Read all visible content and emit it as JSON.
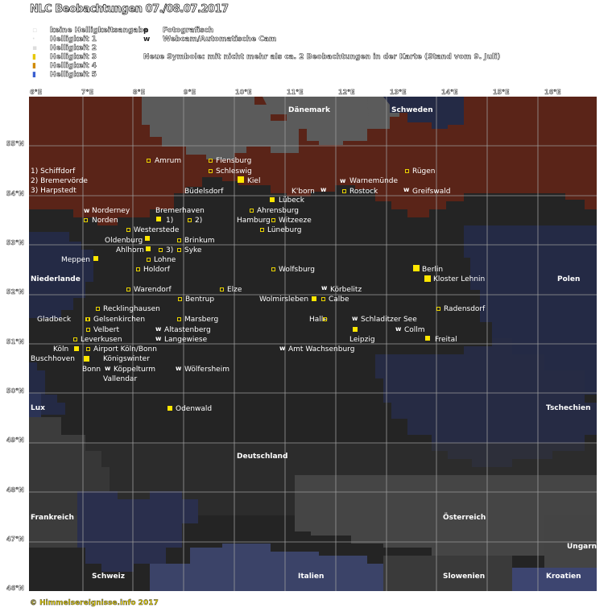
{
  "title": "NLC Beobachtungen 07./08.07.2017",
  "legend": {
    "left": [
      {
        "symbol": "▫",
        "label": "keine Helligkeitsangabe"
      },
      {
        "symbol": "·",
        "label": "Helligkeit 1"
      },
      {
        "symbol": "▪",
        "label": "Helligkeit 2"
      },
      {
        "symbol": "▮",
        "label": "Helligkeit 3"
      },
      {
        "symbol": "▮",
        "label": "Helligkeit 4"
      },
      {
        "symbol": "▮",
        "label": "Helligkeit 5"
      }
    ],
    "right": [
      {
        "symbol": "p",
        "label": "Fotografisch"
      },
      {
        "symbol": "w",
        "label": "Webcam/Automatische Cam"
      }
    ],
    "note": "Neue Symbole: mit nicht mehr als ca. 2 Beobachtungen in der Karte (Stand vom 9. Juli)"
  },
  "lon_labels": [
    "6°E",
    "7°E",
    "8°E",
    "9°E",
    "10°E",
    "11°E",
    "12°E",
    "13°E",
    "14°E",
    "15°E",
    "16°E"
  ],
  "lat_labels": [
    "55°N",
    "54°N",
    "53°N",
    "52°N",
    "51°N",
    "50°N",
    "49°N",
    "48°N",
    "47°N",
    "46°N"
  ],
  "countries": [
    "Dänemark",
    "Schweden",
    "Niederlande",
    "Polen",
    "Lux",
    "Tschechien",
    "Deutschland",
    "Frankreich",
    "Österreich",
    "Ungarn",
    "Schweiz",
    "Italien",
    "Slowenien",
    "Kroatien"
  ],
  "notes": [
    "1) Schiffdorf",
    "2) Bremervörde",
    "3) Harpstedt"
  ],
  "places": [
    "Amrum",
    "Flensburg",
    "Schleswig",
    "Kiel",
    "Büdelsdorf",
    "K'born",
    "Warnemünde",
    "Rostock",
    "Rügen",
    "Greifswald",
    "Lübeck",
    "Norderney",
    "Norden",
    "Bremerhaven",
    "1)",
    "2)",
    "Ahrensburg",
    "Hamburg",
    "Witzeeze",
    "Westerstede",
    "Lüneburg",
    "Oldenburg",
    "Brinkum",
    "Ahlhorn",
    "3)",
    "Syke",
    "Meppen",
    "Lohne",
    "Holdorf",
    "Wolfsburg",
    "Berlin",
    "Kloster Lehnin",
    "Warendorf",
    "Elze",
    "Körbelitz",
    "Bentrup",
    "Wolmirsleben",
    "Calbe",
    "Recklinghausen",
    "Radensdorf",
    "Gladbeck",
    "Gelsenkirchen",
    "Marsberg",
    "Halle",
    "Schladitzer See",
    "Velbert",
    "Altastenberg",
    "Collm",
    "Leverkusen",
    "Langewiese",
    "Leipzig",
    "Freital",
    "Köln",
    "Airport Köln/Bonn",
    "Amt Wachsenburg",
    "Buschhoven",
    "Königswinter",
    "Bonn",
    "Köppelturm",
    "Wölfersheim",
    "Vallendar",
    "Odenwald"
  ],
  "footer": "© Himmelsereignisse.info 2017",
  "colors": {
    "land_de": "#242424",
    "sea": "#5a2418",
    "dk": "#5b5b5b",
    "pl": "#242a45",
    "symbol": "#ffe600"
  }
}
